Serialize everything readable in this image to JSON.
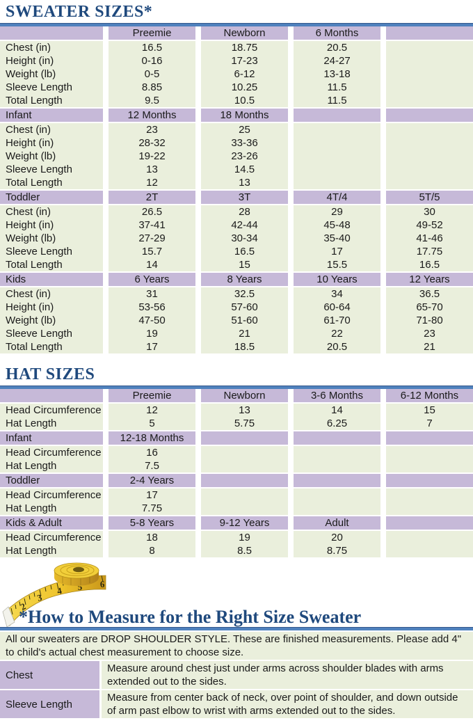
{
  "colors": {
    "heading": "#1f497d",
    "rule_blue": "#4f81bd",
    "header_purple": "#c6b9d8",
    "row_green": "#eaefdc",
    "tape_yellow": "#efc52c"
  },
  "sweater": {
    "title": "SWEATER SIZES*",
    "sections": [
      {
        "header": [
          "",
          "Preemie",
          "Newborn",
          "6 Months",
          ""
        ],
        "rows": [
          [
            "Chest (in)",
            "16.5",
            "18.75",
            "20.5",
            ""
          ],
          [
            "Height (in)",
            "0-16",
            "17-23",
            "24-27",
            ""
          ],
          [
            "Weight (lb)",
            "0-5",
            "6-12",
            "13-18",
            ""
          ],
          [
            "Sleeve Length",
            "8.85",
            "10.25",
            "11.5",
            ""
          ],
          [
            "Total Length",
            "9.5",
            "10.5",
            "11.5",
            ""
          ]
        ]
      },
      {
        "header": [
          "Infant",
          "12 Months",
          "18 Months",
          "",
          ""
        ],
        "rows": [
          [
            "Chest (in)",
            "23",
            "25",
            "",
            ""
          ],
          [
            "Height (in)",
            "28-32",
            "33-36",
            "",
            ""
          ],
          [
            "Weight (lb)",
            "19-22",
            "23-26",
            "",
            ""
          ],
          [
            "Sleeve Length",
            "13",
            "14.5",
            "",
            ""
          ],
          [
            "Total Length",
            "12",
            "13",
            "",
            ""
          ]
        ]
      },
      {
        "header": [
          "Toddler",
          "2T",
          "3T",
          "4T/4",
          "5T/5"
        ],
        "rows": [
          [
            "Chest (in)",
            "26.5",
            "28",
            "29",
            "30"
          ],
          [
            "Height (in)",
            "37-41",
            "42-44",
            "45-48",
            "49-52"
          ],
          [
            "Weight (lb)",
            "27-29",
            "30-34",
            "35-40",
            "41-46"
          ],
          [
            "Sleeve Length",
            "15.7",
            "16.5",
            "17",
            "17.75"
          ],
          [
            "Total Length",
            "14",
            "15",
            "15.5",
            "16.5"
          ]
        ]
      },
      {
        "header": [
          "Kids",
          "6 Years",
          "8 Years",
          "10 Years",
          "12 Years"
        ],
        "rows": [
          [
            "Chest (in)",
            "31",
            "32.5",
            "34",
            "36.5"
          ],
          [
            "Height (in)",
            "53-56",
            "57-60",
            "60-64",
            "65-70"
          ],
          [
            "Weight (lb)",
            "47-50",
            "51-60",
            "61-70",
            "71-80"
          ],
          [
            "Sleeve Length",
            "19",
            "21",
            "22",
            "23"
          ],
          [
            "Total Length",
            "17",
            "18.5",
            "20.5",
            "21"
          ]
        ]
      }
    ]
  },
  "hat": {
    "title": "HAT SIZES",
    "sections": [
      {
        "header": [
          "",
          "Preemie",
          "Newborn",
          "3-6 Months",
          "6-12 Months"
        ],
        "rows": [
          [
            "Head Circumference",
            "12",
            "13",
            "14",
            "15"
          ],
          [
            "Hat Length",
            "5",
            "5.75",
            "6.25",
            "7"
          ]
        ]
      },
      {
        "header": [
          "Infant",
          "12-18 Months",
          "",
          "",
          ""
        ],
        "rows": [
          [
            "Head Circumference",
            "16",
            "",
            "",
            ""
          ],
          [
            "Hat Length",
            "7.5",
            "",
            "",
            ""
          ]
        ]
      },
      {
        "header": [
          "Toddler",
          "2-4 Years",
          "",
          "",
          ""
        ],
        "rows": [
          [
            "Head Circumference",
            "17",
            "",
            "",
            ""
          ],
          [
            "Hat Length",
            "7.75",
            "",
            "",
            ""
          ]
        ]
      },
      {
        "header": [
          "Kids & Adult",
          "5-8 Years",
          "9-12 Years",
          "Adult",
          ""
        ],
        "rows": [
          [
            "Head Circumference",
            "18",
            "19",
            "20",
            ""
          ],
          [
            "Hat Length",
            "8",
            "8.5",
            "8.75",
            ""
          ]
        ]
      }
    ]
  },
  "measure": {
    "title": "*How to Measure for the Right Size Sweater",
    "intro": "All our sweaters are DROP SHOULDER STYLE.  These are finished measurements.  Please add 4\" to child's actual chest measurement to choose size.",
    "rows": [
      {
        "label": "Chest",
        "description": "Measure around chest just under arms across shoulder blades with arms extended out to the sides."
      },
      {
        "label": "Sleeve Length",
        "description": "Measure from center back of neck, over point of shoulder, and down outside of arm past elbow to wrist with arms extended out to the sides."
      }
    ],
    "tape_numbers": [
      "1",
      "2",
      "3",
      "4",
      "5",
      "6"
    ]
  }
}
